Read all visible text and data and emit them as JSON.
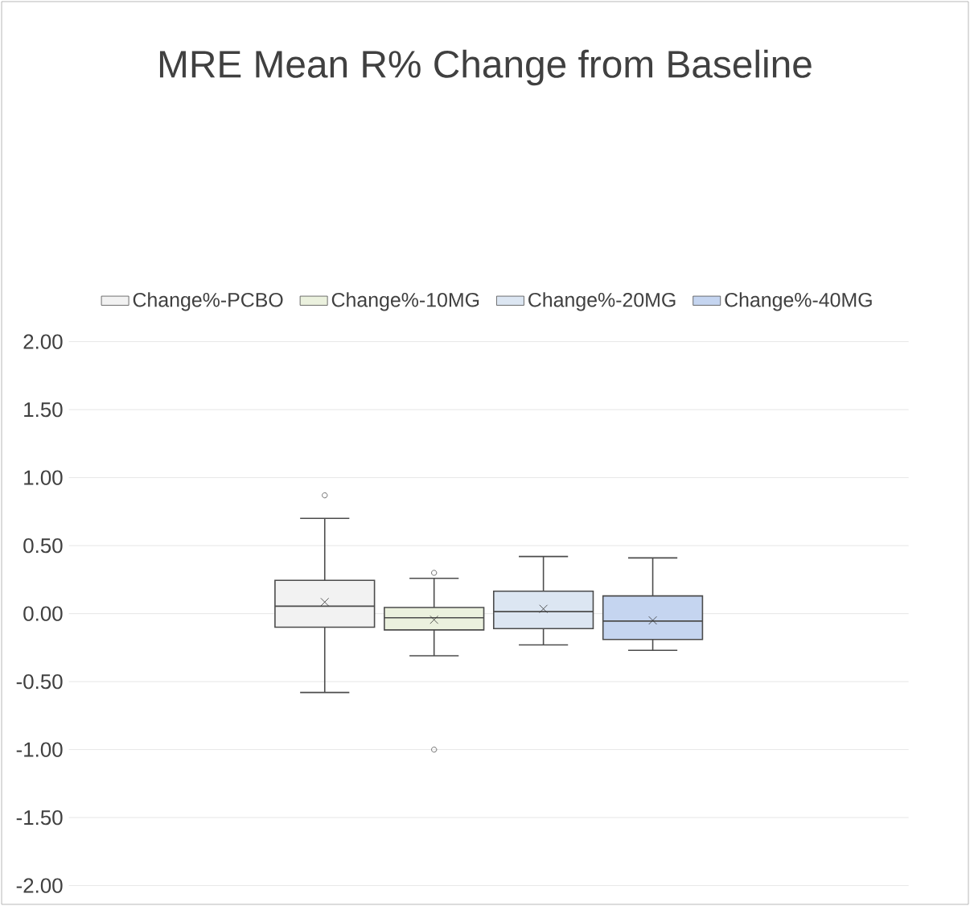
{
  "chart_data": {
    "type": "box",
    "title": "MRE Mean R% Change from Baseline",
    "categories": [
      null
    ],
    "series": [
      {
        "name": "Change%-PCBO",
        "color": "#f2f2f2",
        "boxes": [
          {
            "low": -0.58,
            "q1": -0.1,
            "median": 0.055,
            "q3": 0.245,
            "high": 0.7,
            "mean": 0.085,
            "outliers": [
              0.87
            ]
          }
        ]
      },
      {
        "name": "Change%-10MG",
        "color": "#ebf1de",
        "boxes": [
          {
            "low": -0.31,
            "q1": -0.12,
            "median": -0.03,
            "q3": 0.045,
            "high": 0.26,
            "mean": -0.045,
            "outliers": [
              0.3,
              -1.0
            ]
          }
        ]
      },
      {
        "name": "Change%-20MG",
        "color": "#dce6f2",
        "boxes": [
          {
            "low": -0.23,
            "q1": -0.11,
            "median": 0.015,
            "q3": 0.165,
            "high": 0.42,
            "mean": 0.035
          }
        ]
      },
      {
        "name": "Change%-40MG",
        "color": "#c5d5f0",
        "boxes": [
          {
            "low": -0.27,
            "q1": -0.19,
            "median": -0.055,
            "q3": 0.13,
            "high": 0.41,
            "mean": -0.05
          }
        ]
      }
    ],
    "ylim": [
      -2,
      2
    ],
    "yticks": [
      {
        "value": -2,
        "label": "-2.00"
      },
      {
        "value": -1.5,
        "label": "-1.50"
      },
      {
        "value": -1,
        "label": "-1.00"
      },
      {
        "value": -0.5,
        "label": "-0.50"
      },
      {
        "value": 0,
        "label": "0.00"
      },
      {
        "value": 0.5,
        "label": "0.50"
      },
      {
        "value": 1,
        "label": "1.00"
      },
      {
        "value": 1.5,
        "label": "1.50"
      },
      {
        "value": 2,
        "label": "2.00"
      }
    ],
    "grid": "y",
    "legend": "top"
  }
}
